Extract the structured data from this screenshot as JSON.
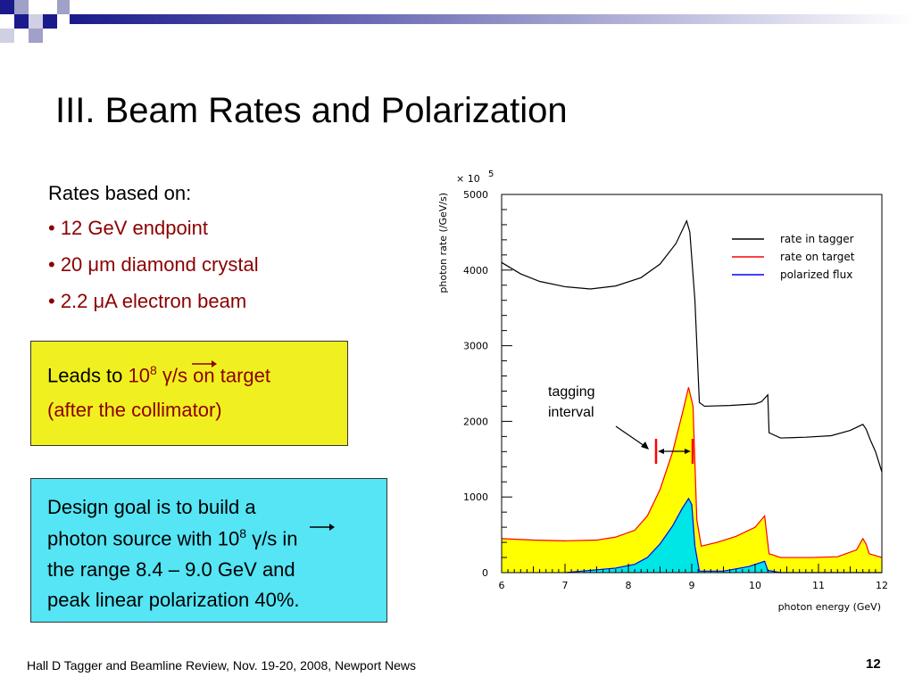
{
  "slide": {
    "title": "III. Beam Rates and Polarization",
    "intro": "Rates based on:",
    "bullets": [
      "• 12 GeV endpoint",
      "• 20 μm diamond crystal",
      "• 2.2 μA electron beam"
    ],
    "box1": {
      "leads_to": "Leads to ",
      "ten": "10",
      "exp": "8",
      "gamma": "γ",
      "rest": "/s on target",
      "line2": "(after the collimator)"
    },
    "box2": {
      "line1": "Design goal is to build a",
      "line2a": "photon source with 10",
      "exp": "8",
      "gamma": "γ",
      "line2b": "/s in",
      "line3": "the range 8.4 – 9.0 GeV and",
      "line4": "peak linear polarization 40%."
    },
    "annotation": {
      "line1": "tagging",
      "line2": "interval"
    },
    "footer": "Hall D Tagger and Beamline Review, Nov. 19-20, 2008, Newport News",
    "page_number": "12"
  },
  "colors": {
    "tagger": "#000000",
    "target": "#ff0000",
    "polarized": "#0000ff",
    "target_fill": "#ffff00",
    "polarized_fill": "#00e5e5",
    "deco_blue": "#1a1a8c"
  },
  "chart_data": {
    "type": "line",
    "xlabel": "photon energy (GeV)",
    "ylabel": "photon rate (/GeV/s)",
    "y_multiplier": "× 10",
    "y_multiplier_exp": "5",
    "xlim": [
      6,
      12
    ],
    "ylim": [
      0,
      5000
    ],
    "x_ticks": [
      "6",
      "7",
      "8",
      "9",
      "10",
      "11",
      "12"
    ],
    "y_ticks": [
      "0",
      "1000",
      "2000",
      "3000",
      "4000",
      "5000"
    ],
    "legend_position": "top-right",
    "tagging_interval": [
      8.4,
      9.0
    ],
    "series": [
      {
        "name": "rate in tagger",
        "color": "#000000",
        "points": [
          [
            6.0,
            4100
          ],
          [
            6.3,
            3950
          ],
          [
            6.6,
            3850
          ],
          [
            7.0,
            3780
          ],
          [
            7.4,
            3750
          ],
          [
            7.8,
            3790
          ],
          [
            8.2,
            3900
          ],
          [
            8.5,
            4080
          ],
          [
            8.75,
            4350
          ],
          [
            8.92,
            4650
          ],
          [
            8.97,
            4500
          ],
          [
            9.05,
            3600
          ],
          [
            9.12,
            2250
          ],
          [
            9.2,
            2200
          ],
          [
            9.6,
            2210
          ],
          [
            10.0,
            2230
          ],
          [
            10.1,
            2260
          ],
          [
            10.2,
            2350
          ],
          [
            10.22,
            1850
          ],
          [
            10.4,
            1780
          ],
          [
            10.8,
            1790
          ],
          [
            11.2,
            1810
          ],
          [
            11.5,
            1880
          ],
          [
            11.7,
            1960
          ],
          [
            11.75,
            1900
          ],
          [
            11.82,
            1750
          ],
          [
            11.9,
            1600
          ],
          [
            12.0,
            1330
          ]
        ]
      },
      {
        "name": "rate on target",
        "color": "#ff0000",
        "points": [
          [
            6.0,
            450
          ],
          [
            6.5,
            430
          ],
          [
            7.0,
            420
          ],
          [
            7.5,
            430
          ],
          [
            7.8,
            470
          ],
          [
            8.1,
            560
          ],
          [
            8.3,
            750
          ],
          [
            8.5,
            1100
          ],
          [
            8.7,
            1600
          ],
          [
            8.85,
            2100
          ],
          [
            8.95,
            2450
          ],
          [
            9.02,
            2200
          ],
          [
            9.08,
            700
          ],
          [
            9.15,
            350
          ],
          [
            9.4,
            400
          ],
          [
            9.7,
            480
          ],
          [
            10.0,
            600
          ],
          [
            10.15,
            750
          ],
          [
            10.22,
            250
          ],
          [
            10.4,
            200
          ],
          [
            10.9,
            200
          ],
          [
            11.3,
            210
          ],
          [
            11.6,
            300
          ],
          [
            11.7,
            450
          ],
          [
            11.75,
            380
          ],
          [
            11.8,
            250
          ],
          [
            12.0,
            200
          ]
        ]
      },
      {
        "name": "polarized flux",
        "color": "#0000ff",
        "points": [
          [
            7.0,
            0
          ],
          [
            7.4,
            30
          ],
          [
            7.8,
            60
          ],
          [
            8.1,
            110
          ],
          [
            8.3,
            200
          ],
          [
            8.5,
            380
          ],
          [
            8.7,
            620
          ],
          [
            8.85,
            850
          ],
          [
            8.95,
            980
          ],
          [
            9.0,
            900
          ],
          [
            9.05,
            350
          ],
          [
            9.12,
            20
          ],
          [
            9.5,
            20
          ],
          [
            9.9,
            80
          ],
          [
            10.15,
            150
          ],
          [
            10.2,
            30
          ],
          [
            10.4,
            0
          ],
          [
            12.0,
            0
          ]
        ]
      }
    ]
  }
}
